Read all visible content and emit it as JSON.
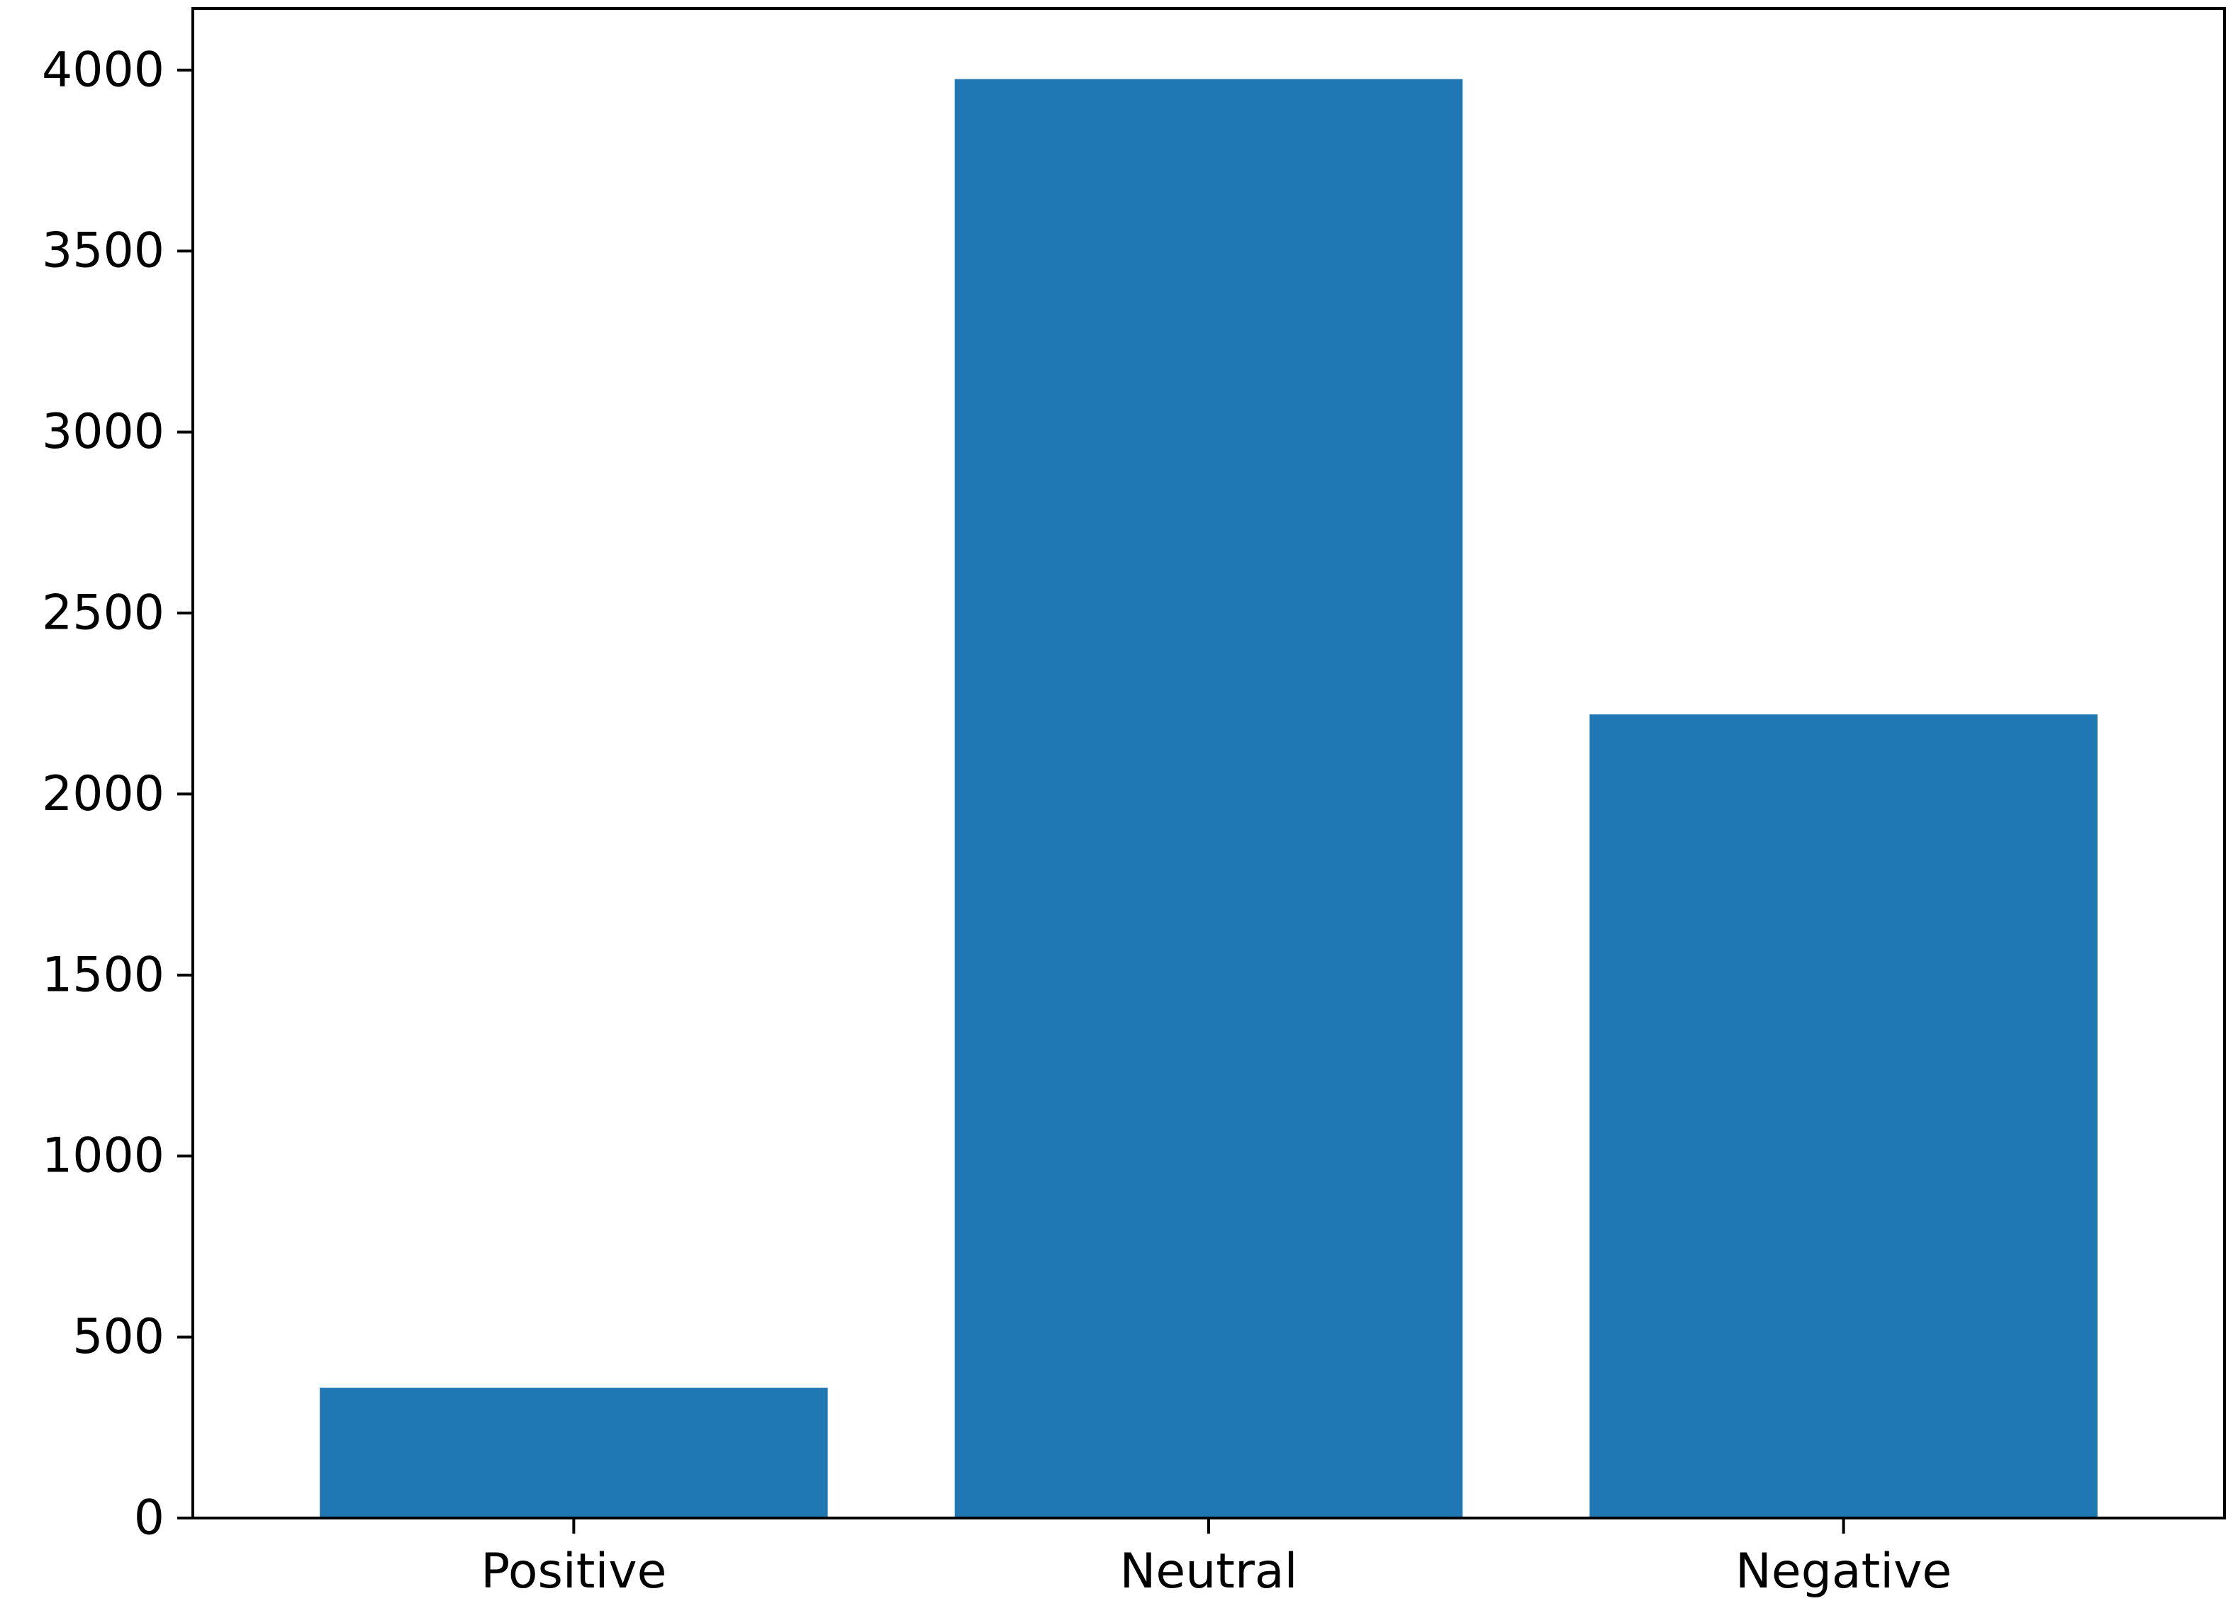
{
  "chart_data": {
    "type": "bar",
    "title": "",
    "xlabel": "",
    "ylabel": "",
    "categories": [
      "Positive",
      "Neutral",
      "Negative"
    ],
    "values": [
      360,
      3975,
      2220
    ],
    "ylim": [
      0,
      4170
    ],
    "yticks": [
      0,
      500,
      1000,
      1500,
      2000,
      2500,
      3000,
      3500,
      4000
    ],
    "ytick_labels": [
      "0",
      "500",
      "1000",
      "1500",
      "2000",
      "2500",
      "3000",
      "3500",
      "4000"
    ],
    "grid": false,
    "legend": "none",
    "bar_color": "#1f77b4",
    "axes_color": "#000000"
  }
}
